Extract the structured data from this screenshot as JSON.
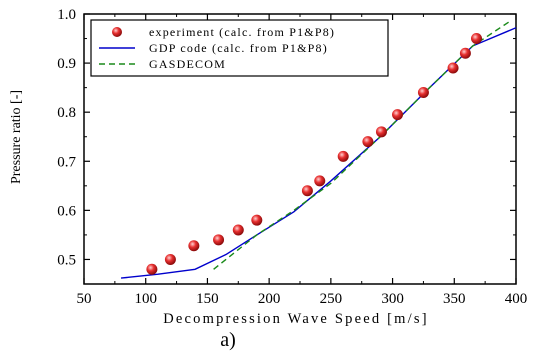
{
  "chart_data": {
    "type": "line",
    "xlabel": "Decompression Wave Speed [m/s]",
    "ylabel": "Pressure ratio [-]",
    "panel_label": "a)",
    "xlim": [
      50,
      400
    ],
    "ylim": [
      0.45,
      1.0
    ],
    "x_ticks": [
      50,
      100,
      150,
      200,
      250,
      300,
      350,
      400
    ],
    "y_ticks": [
      0.5,
      0.6,
      0.7,
      0.8,
      0.9,
      1.0
    ],
    "x_tick_labels": [
      "50",
      "100",
      "150",
      "200",
      "250",
      "300",
      "350",
      "400"
    ],
    "y_tick_labels": [
      "0.5",
      "0.6",
      "0.7",
      "0.8",
      "0.9",
      "1.0"
    ],
    "legend_position": "top-left",
    "series": [
      {
        "name": "experiment (calc. from P1&P8)",
        "kind": "scatter",
        "color": "#e02020",
        "x": [
          105,
          120,
          139,
          159,
          175,
          190,
          231,
          241,
          260,
          280,
          291,
          304,
          325,
          349,
          359,
          368
        ],
        "y": [
          0.48,
          0.5,
          0.528,
          0.54,
          0.56,
          0.58,
          0.64,
          0.66,
          0.71,
          0.74,
          0.76,
          0.795,
          0.84,
          0.89,
          0.92,
          0.95
        ]
      },
      {
        "name": "GDP code (calc. from P1&P8)",
        "kind": "line",
        "style": "solid",
        "color": "#0000cc",
        "x": [
          80,
          110,
          140,
          165,
          190,
          220,
          250,
          290,
          330,
          365,
          400
        ],
        "y": [
          0.462,
          0.47,
          0.48,
          0.51,
          0.55,
          0.597,
          0.66,
          0.75,
          0.85,
          0.935,
          0.972
        ]
      },
      {
        "name": "GASDECOM",
        "kind": "line",
        "style": "dashed",
        "color": "#1a8a1a",
        "x": [
          155,
          170,
          190,
          220,
          250,
          290,
          330,
          365,
          395
        ],
        "y": [
          0.48,
          0.51,
          0.55,
          0.6,
          0.655,
          0.75,
          0.85,
          0.935,
          0.985
        ]
      }
    ]
  }
}
